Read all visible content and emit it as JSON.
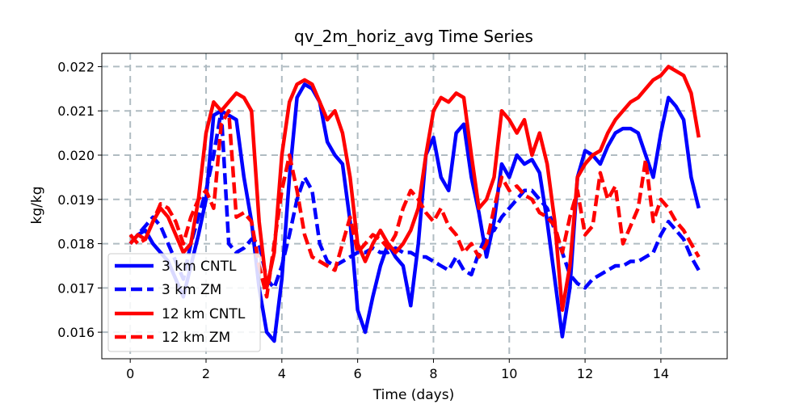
{
  "chart_data": {
    "type": "line",
    "title": "qv_2m_horiz_avg Time Series",
    "xlabel": "Time (days)",
    "ylabel": "kg/kg",
    "xlim": [
      -0.75,
      15.75
    ],
    "ylim": [
      0.0154,
      0.0223
    ],
    "x_ticks": [
      0,
      2,
      4,
      6,
      8,
      10,
      12,
      14
    ],
    "x_tick_labels": [
      "0",
      "2",
      "4",
      "6",
      "8",
      "10",
      "12",
      "14"
    ],
    "y_ticks": [
      0.016,
      0.017,
      0.018,
      0.019,
      0.02,
      0.021,
      0.022
    ],
    "y_tick_labels": [
      "0.016",
      "0.017",
      "0.018",
      "0.019",
      "0.020",
      "0.021",
      "0.022"
    ],
    "grid": true,
    "legend_position": "lower-left",
    "series": [
      {
        "name": "3 km CNTL",
        "color": "#0000ff",
        "style": "solid",
        "x": [
          0,
          0.2,
          0.4,
          0.6,
          0.8,
          1.0,
          1.2,
          1.4,
          1.6,
          1.8,
          2.0,
          2.2,
          2.4,
          2.6,
          2.8,
          3.0,
          3.2,
          3.4,
          3.6,
          3.8,
          4.0,
          4.2,
          4.4,
          4.6,
          4.8,
          5.0,
          5.2,
          5.4,
          5.6,
          5.8,
          6.0,
          6.2,
          6.4,
          6.6,
          6.8,
          7.0,
          7.2,
          7.4,
          7.6,
          7.8,
          8.0,
          8.2,
          8.4,
          8.6,
          8.8,
          9.0,
          9.2,
          9.4,
          9.6,
          9.8,
          10.0,
          10.2,
          10.4,
          10.6,
          10.8,
          11.0,
          11.2,
          11.4,
          11.6,
          11.8,
          12.0,
          12.2,
          12.4,
          12.6,
          12.8,
          13.0,
          13.2,
          13.4,
          13.6,
          13.8,
          14.0,
          14.2,
          14.4,
          14.6,
          14.8,
          15.0
        ],
        "y": [
          0.018,
          0.0182,
          0.0183,
          0.018,
          0.0178,
          0.0176,
          0.0172,
          0.0168,
          0.0175,
          0.0182,
          0.019,
          0.0209,
          0.021,
          0.0209,
          0.0208,
          0.0195,
          0.0185,
          0.017,
          0.016,
          0.0158,
          0.0172,
          0.0195,
          0.0213,
          0.0216,
          0.0215,
          0.0212,
          0.0203,
          0.02,
          0.0198,
          0.0185,
          0.0165,
          0.016,
          0.0168,
          0.0175,
          0.018,
          0.0177,
          0.0175,
          0.0166,
          0.018,
          0.02,
          0.0204,
          0.0195,
          0.0192,
          0.0205,
          0.0207,
          0.0195,
          0.0187,
          0.0177,
          0.0185,
          0.0198,
          0.0195,
          0.02,
          0.0198,
          0.0199,
          0.0196,
          0.0185,
          0.0172,
          0.0159,
          0.017,
          0.0195,
          0.0201,
          0.02,
          0.0198,
          0.0202,
          0.0205,
          0.0206,
          0.0206,
          0.0205,
          0.02,
          0.0195,
          0.0205,
          0.0213,
          0.0211,
          0.0208,
          0.0195,
          0.0188
        ]
      },
      {
        "name": "3 km ZM",
        "color": "#0000ff",
        "style": "dashed",
        "x": [
          0,
          0.2,
          0.4,
          0.6,
          0.8,
          1.0,
          1.2,
          1.4,
          1.6,
          1.8,
          2.0,
          2.2,
          2.4,
          2.6,
          2.8,
          3.0,
          3.2,
          3.4,
          3.6,
          3.8,
          4.0,
          4.2,
          4.4,
          4.6,
          4.8,
          5.0,
          5.2,
          5.4,
          5.6,
          5.8,
          6.0,
          6.2,
          6.4,
          6.6,
          6.8,
          7.0,
          7.2,
          7.4,
          7.6,
          7.8,
          8.0,
          8.2,
          8.4,
          8.6,
          8.8,
          9.0,
          9.2,
          9.4,
          9.6,
          9.8,
          10.0,
          10.2,
          10.4,
          10.6,
          10.8,
          11.0,
          11.2,
          11.4,
          11.6,
          11.8,
          12.0,
          12.2,
          12.4,
          12.6,
          12.8,
          13.0,
          13.2,
          13.4,
          13.6,
          13.8,
          14.0,
          14.2,
          14.4,
          14.6,
          14.8,
          15.0
        ],
        "y": [
          0.018,
          0.0182,
          0.0184,
          0.0186,
          0.0184,
          0.018,
          0.0176,
          0.0172,
          0.018,
          0.0186,
          0.0192,
          0.02,
          0.021,
          0.018,
          0.0178,
          0.0179,
          0.0181,
          0.018,
          0.0172,
          0.017,
          0.0175,
          0.0182,
          0.019,
          0.0195,
          0.0192,
          0.018,
          0.0176,
          0.0175,
          0.0176,
          0.0177,
          0.0178,
          0.0178,
          0.0179,
          0.0178,
          0.0178,
          0.0179,
          0.0178,
          0.0178,
          0.0177,
          0.0177,
          0.0176,
          0.0175,
          0.0174,
          0.0177,
          0.0174,
          0.0173,
          0.0178,
          0.0182,
          0.0183,
          0.0186,
          0.0188,
          0.019,
          0.0192,
          0.0192,
          0.019,
          0.0188,
          0.0183,
          0.0178,
          0.0173,
          0.0171,
          0.017,
          0.0172,
          0.0173,
          0.0174,
          0.0175,
          0.0175,
          0.0176,
          0.0176,
          0.0177,
          0.0178,
          0.0182,
          0.0185,
          0.0183,
          0.0181,
          0.0177,
          0.0174
        ]
      },
      {
        "name": "12 km CNTL",
        "color": "#ff0000",
        "style": "solid",
        "x": [
          0,
          0.2,
          0.4,
          0.6,
          0.8,
          1.0,
          1.2,
          1.4,
          1.6,
          1.8,
          2.0,
          2.2,
          2.4,
          2.6,
          2.8,
          3.0,
          3.2,
          3.4,
          3.6,
          3.8,
          4.0,
          4.2,
          4.4,
          4.6,
          4.8,
          5.0,
          5.2,
          5.4,
          5.6,
          5.8,
          6.0,
          6.2,
          6.4,
          6.6,
          6.8,
          7.0,
          7.2,
          7.4,
          7.6,
          7.8,
          8.0,
          8.2,
          8.4,
          8.6,
          8.8,
          9.0,
          9.2,
          9.4,
          9.6,
          9.8,
          10.0,
          10.2,
          10.4,
          10.6,
          10.8,
          11.0,
          11.2,
          11.4,
          11.6,
          11.8,
          12.0,
          12.2,
          12.4,
          12.6,
          12.8,
          13.0,
          13.2,
          13.4,
          13.6,
          13.8,
          14.0,
          14.2,
          14.4,
          14.6,
          14.8,
          15.0
        ],
        "y": [
          0.018,
          0.0182,
          0.0181,
          0.0185,
          0.0188,
          0.0186,
          0.0182,
          0.0178,
          0.018,
          0.019,
          0.0205,
          0.0212,
          0.021,
          0.0212,
          0.0214,
          0.0213,
          0.021,
          0.0185,
          0.017,
          0.0178,
          0.02,
          0.0212,
          0.0216,
          0.0217,
          0.0216,
          0.0212,
          0.0208,
          0.021,
          0.0205,
          0.0195,
          0.018,
          0.0176,
          0.018,
          0.0183,
          0.018,
          0.0178,
          0.018,
          0.0183,
          0.0188,
          0.02,
          0.021,
          0.0213,
          0.0212,
          0.0214,
          0.0213,
          0.02,
          0.0188,
          0.019,
          0.0195,
          0.021,
          0.0208,
          0.0205,
          0.0208,
          0.02,
          0.0205,
          0.0198,
          0.0185,
          0.0165,
          0.0175,
          0.0195,
          0.0198,
          0.02,
          0.0201,
          0.0205,
          0.0208,
          0.021,
          0.0212,
          0.0213,
          0.0215,
          0.0217,
          0.0218,
          0.022,
          0.0219,
          0.0218,
          0.0214,
          0.0204
        ]
      },
      {
        "name": "12 km ZM",
        "color": "#ff0000",
        "style": "dashed",
        "x": [
          0,
          0.2,
          0.4,
          0.6,
          0.8,
          1.0,
          1.2,
          1.4,
          1.6,
          1.8,
          2.0,
          2.2,
          2.4,
          2.6,
          2.8,
          3.0,
          3.2,
          3.4,
          3.6,
          3.8,
          4.0,
          4.2,
          4.4,
          4.6,
          4.8,
          5.0,
          5.2,
          5.4,
          5.6,
          5.8,
          6.0,
          6.2,
          6.4,
          6.6,
          6.8,
          7.0,
          7.2,
          7.4,
          7.6,
          7.8,
          8.0,
          8.2,
          8.4,
          8.6,
          8.8,
          9.0,
          9.2,
          9.4,
          9.6,
          9.8,
          10.0,
          10.2,
          10.4,
          10.6,
          10.8,
          11.0,
          11.2,
          11.4,
          11.6,
          11.8,
          12.0,
          12.2,
          12.4,
          12.6,
          12.8,
          13.0,
          13.2,
          13.4,
          13.6,
          13.8,
          14.0,
          14.2,
          14.4,
          14.6,
          14.8,
          15.0
        ],
        "y": [
          0.0182,
          0.018,
          0.0181,
          0.0185,
          0.0189,
          0.0188,
          0.0185,
          0.018,
          0.0186,
          0.019,
          0.0192,
          0.0188,
          0.0207,
          0.021,
          0.0186,
          0.0187,
          0.0185,
          0.0175,
          0.0168,
          0.018,
          0.0192,
          0.02,
          0.0192,
          0.0182,
          0.0177,
          0.0176,
          0.0175,
          0.0174,
          0.018,
          0.0186,
          0.0178,
          0.018,
          0.0182,
          0.0181,
          0.0179,
          0.0182,
          0.0188,
          0.0192,
          0.019,
          0.0187,
          0.0185,
          0.0188,
          0.0184,
          0.0182,
          0.0178,
          0.018,
          0.0177,
          0.018,
          0.0188,
          0.0195,
          0.0192,
          0.0193,
          0.0191,
          0.019,
          0.0187,
          0.0186,
          0.0184,
          0.0178,
          0.0186,
          0.0192,
          0.0182,
          0.0184,
          0.0196,
          0.019,
          0.0193,
          0.018,
          0.0184,
          0.0188,
          0.0199,
          0.0185,
          0.019,
          0.0188,
          0.0185,
          0.0183,
          0.018,
          0.0177
        ]
      }
    ]
  }
}
